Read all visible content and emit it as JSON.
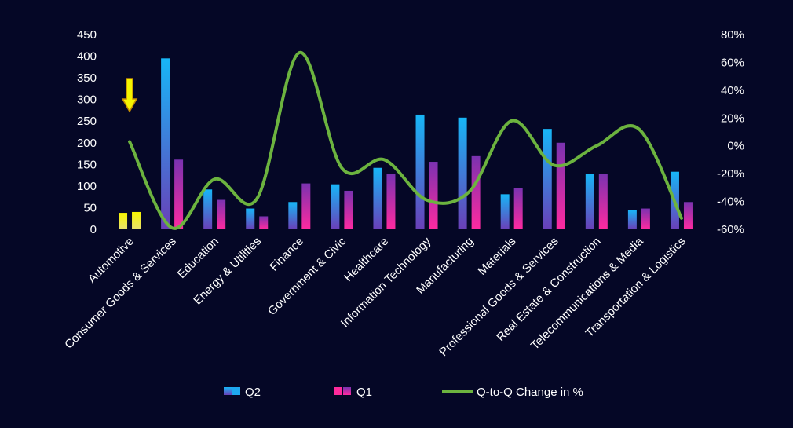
{
  "chart_data": {
    "type": "bar",
    "categories": [
      "Automotive",
      "Consumer Goods & Services",
      "Education",
      "Energy & Utilities",
      "Finance",
      "Government & Civic",
      "Healthcare",
      "Information Technology",
      "Manufacturing",
      "Materials",
      "Professional Goods & Services",
      "Real Estate & Construction",
      "Telecommunications & Media",
      "Transportation & Logistics"
    ],
    "series": [
      {
        "name": "Q2",
        "values": [
          38,
          395,
          92,
          48,
          63,
          104,
          142,
          265,
          258,
          81,
          232,
          128,
          45,
          133
        ]
      },
      {
        "name": "Q1",
        "values": [
          40,
          161,
          68,
          30,
          106,
          89,
          127,
          156,
          169,
          96,
          200,
          128,
          48,
          63
        ]
      }
    ],
    "line_series": {
      "name": "Q-to-Q Change in %",
      "axis": "right",
      "values": [
        3,
        -59,
        -24,
        -38,
        67,
        -16,
        -10,
        -39,
        -33,
        18,
        -14,
        0,
        12,
        -52
      ]
    },
    "y_left": {
      "min": 0,
      "max": 450,
      "ticks": [
        "0",
        "50",
        "100",
        "150",
        "200",
        "250",
        "300",
        "350",
        "400",
        "450"
      ]
    },
    "y_right": {
      "min": -60,
      "max": 80,
      "ticks": [
        "-60%",
        "-40%",
        "-20%",
        "0%",
        "20%",
        "40%",
        "60%",
        "80%"
      ]
    },
    "highlight_category": "Automotive",
    "grid": false,
    "legend_position": "bottom",
    "colors": {
      "background": "#050726",
      "q2": "#1ea8f0",
      "q1": "#ff2a9c",
      "line": "#6cb33f",
      "highlight": "#f4f400"
    }
  }
}
